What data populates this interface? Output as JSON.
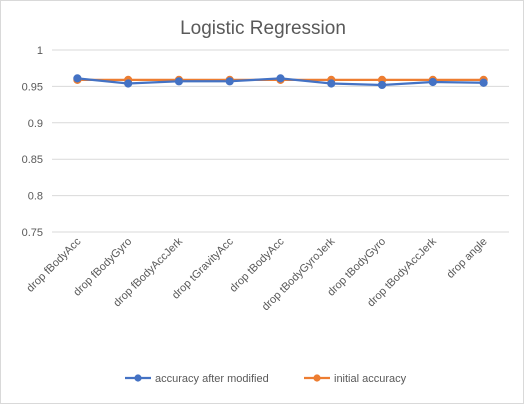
{
  "chart_data": {
    "type": "line",
    "title": "Logistic Regression",
    "xlabel": "",
    "ylabel": "",
    "ylim": [
      0.75,
      1
    ],
    "yticks": [
      0.75,
      0.8,
      0.85,
      0.9,
      0.95,
      1
    ],
    "ytick_labels": [
      "0.75",
      "0.8",
      "0.85",
      "0.9",
      "0.95",
      "1"
    ],
    "grid": true,
    "legend_position": "bottom",
    "categories": [
      "drop fBodyAcc",
      "drop fBodyGyro",
      "drop fBodyAccJerk",
      "drop tGravityAcc",
      "drop tBodyAcc",
      "drop tBodyGyroJerk",
      "drop tBodyGyro",
      "drop tBodyAccJerk",
      "drop angle"
    ],
    "series": [
      {
        "name": "accuracy after modified",
        "color": "#4472c4",
        "values": [
          0.961,
          0.954,
          0.957,
          0.957,
          0.961,
          0.954,
          0.952,
          0.956,
          0.955
        ]
      },
      {
        "name": "initial accuracy",
        "color": "#ed7d31",
        "values": [
          0.959,
          0.959,
          0.959,
          0.959,
          0.959,
          0.959,
          0.959,
          0.959,
          0.959
        ]
      }
    ]
  }
}
